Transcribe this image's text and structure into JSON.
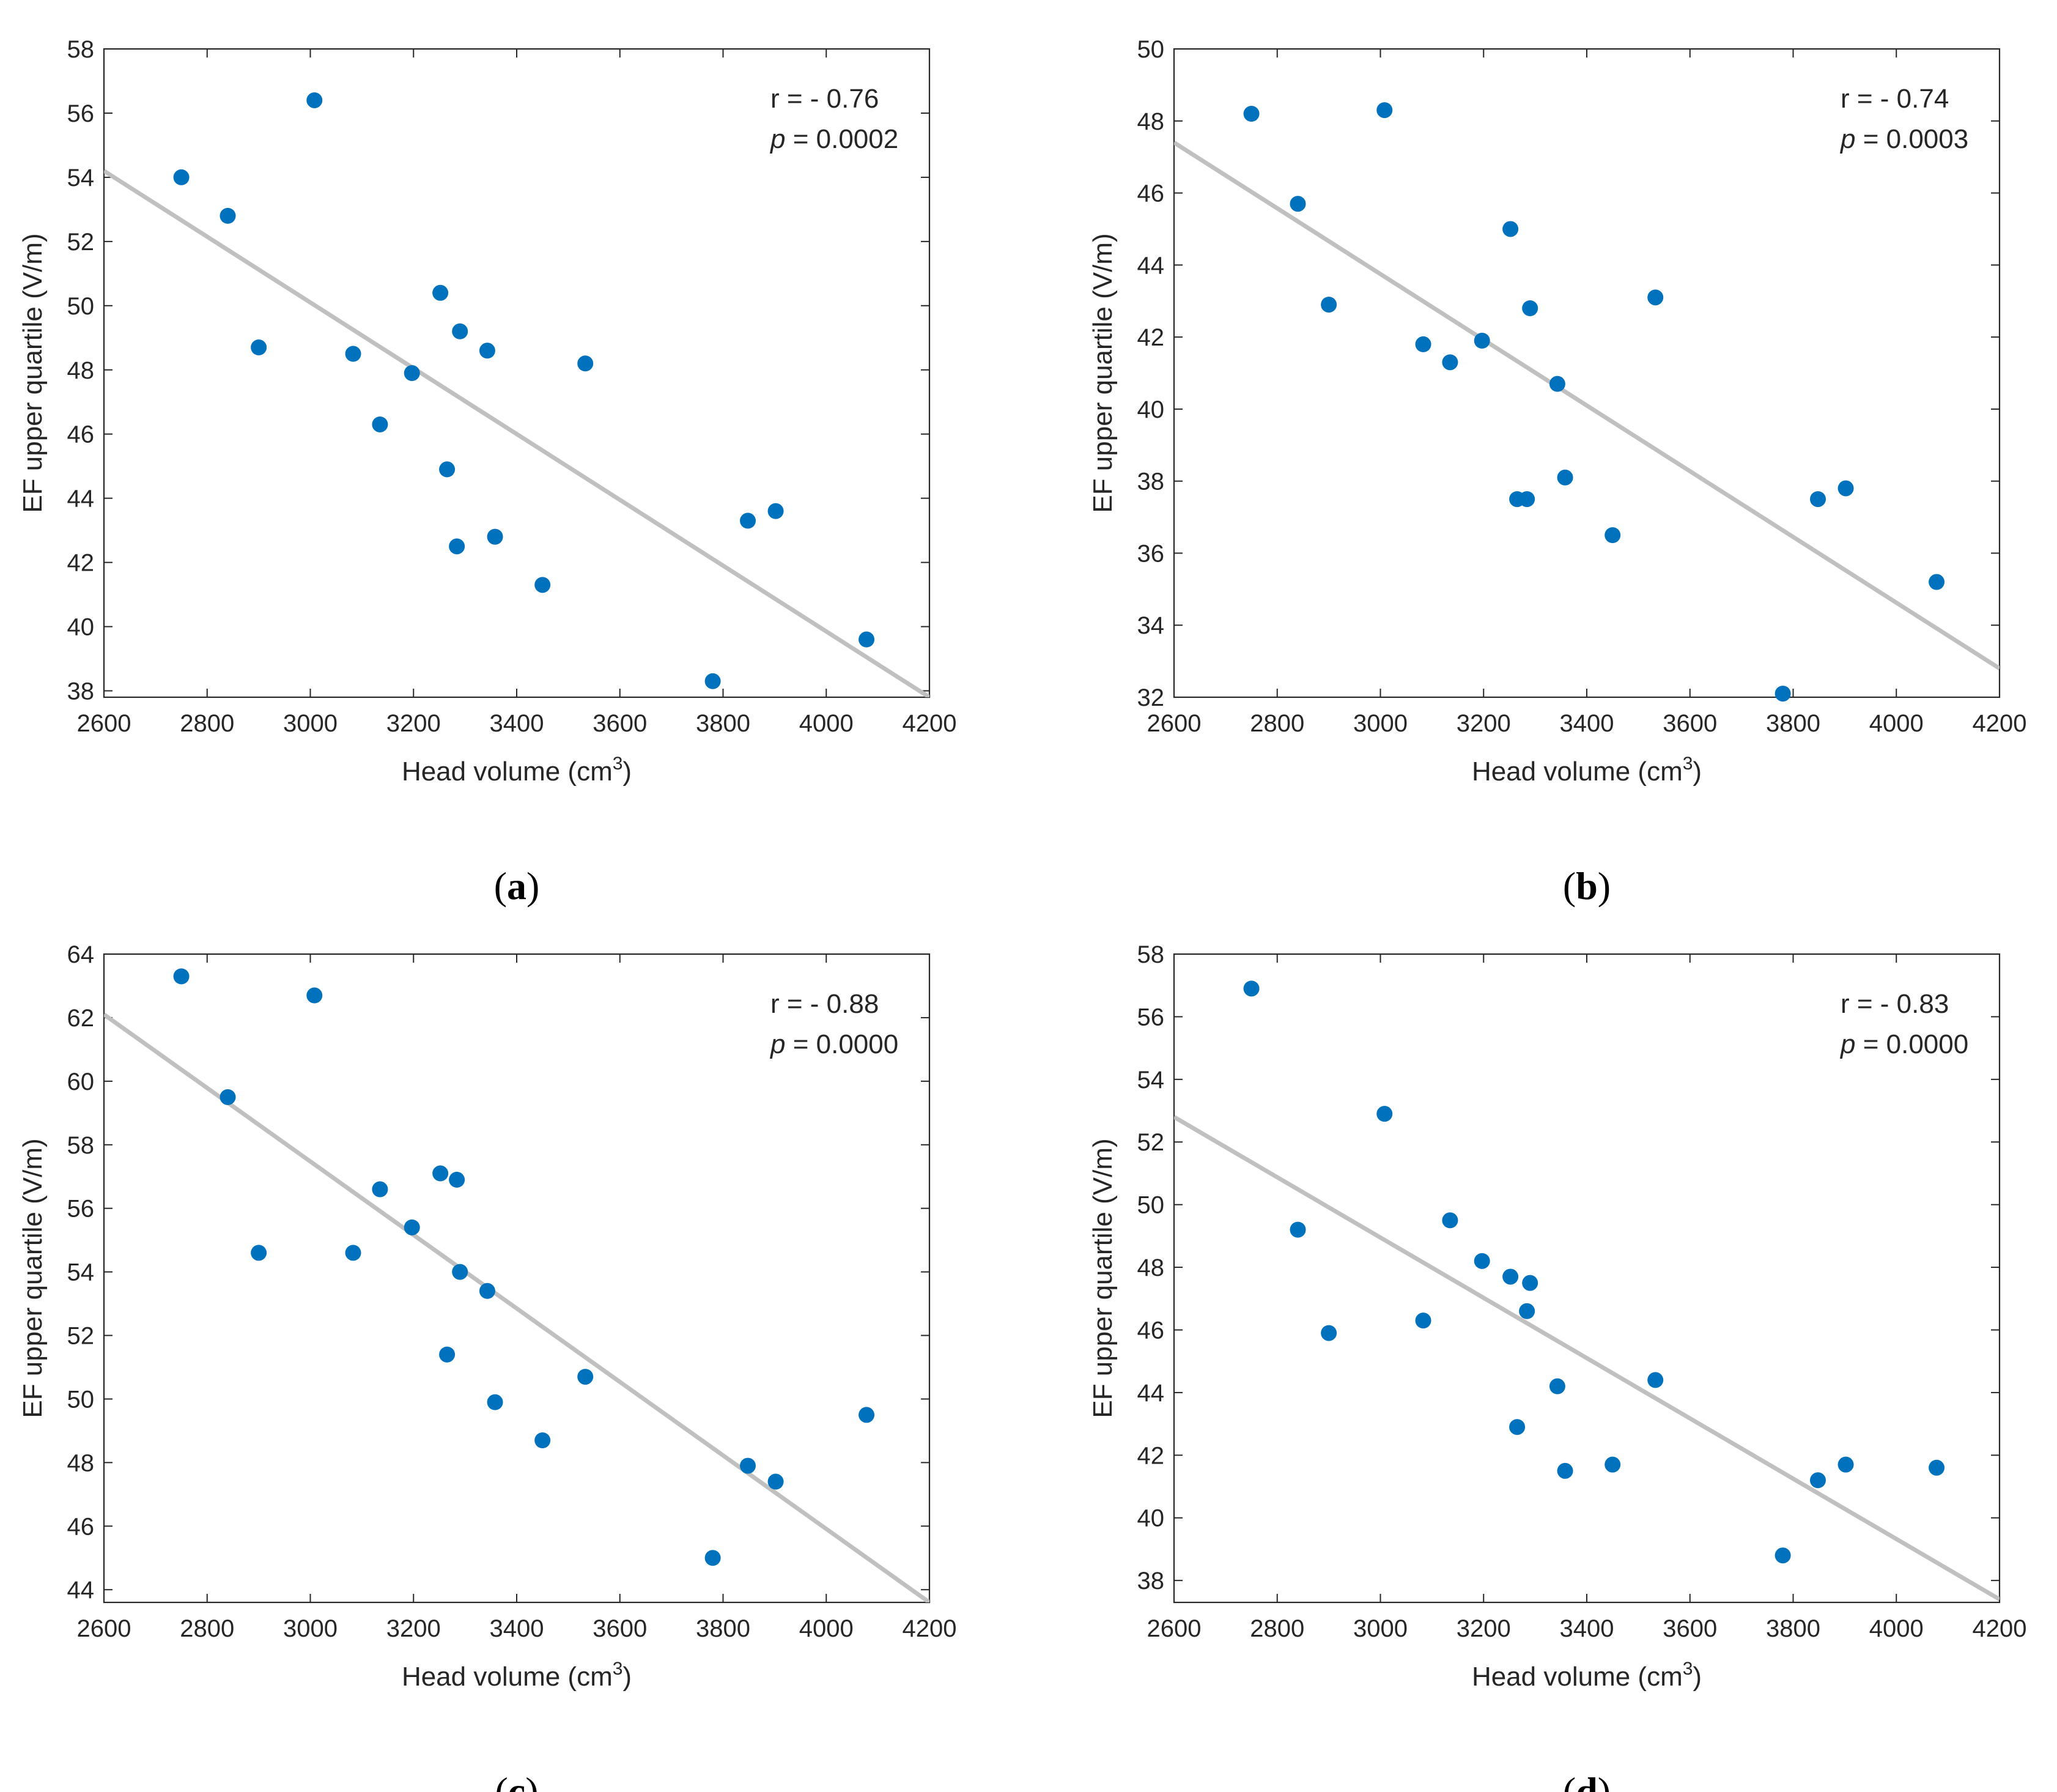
{
  "style": {
    "point_color": "#0072BD",
    "fit_line_color": "#C0C0C0",
    "axis_color": "#262626"
  },
  "chart_data": [
    {
      "type": "scatter",
      "caption": "a",
      "xlabel": "Head volume (cm",
      "xlabel_sup": "3",
      "xlabel_end": ")",
      "ylabel": "EF upper quartile (V/m)",
      "xlim": [
        2600,
        4200
      ],
      "ylim": [
        37.8,
        58
      ],
      "xticks": [
        2600,
        2800,
        3000,
        3200,
        3400,
        3600,
        3800,
        4000,
        4200
      ],
      "yticks": [
        38,
        40,
        42,
        44,
        46,
        48,
        50,
        52,
        54,
        56,
        58
      ],
      "annotation": {
        "r_text": "r = - 0.76",
        "p_label": "p",
        "p_rest": " = 0.0002"
      },
      "fit_line": {
        "x": [
          2600,
          4200
        ],
        "y": [
          54.2,
          37.8
        ]
      },
      "grid": false,
      "x": [
        2750,
        2840,
        2900,
        3008,
        3083,
        3135,
        3197,
        3252,
        3265,
        3284,
        3290,
        3343,
        3358,
        3450,
        3533,
        3780,
        3848,
        3902,
        4078
      ],
      "y": [
        54.0,
        52.8,
        48.7,
        56.4,
        48.5,
        46.3,
        47.9,
        50.4,
        44.9,
        42.5,
        49.2,
        48.6,
        42.8,
        41.3,
        48.2,
        38.3,
        43.3,
        43.6,
        39.6
      ]
    },
    {
      "type": "scatter",
      "caption": "b",
      "xlabel": "Head volume (cm",
      "xlabel_sup": "3",
      "xlabel_end": ")",
      "ylabel": "EF upper quartile (V/m)",
      "xlim": [
        2600,
        4200
      ],
      "ylim": [
        32,
        50
      ],
      "xticks": [
        2600,
        2800,
        3000,
        3200,
        3400,
        3600,
        3800,
        4000,
        4200
      ],
      "yticks": [
        32,
        34,
        36,
        38,
        40,
        42,
        44,
        46,
        48,
        50
      ],
      "annotation": {
        "r_text": "r = - 0.74",
        "p_label": "p",
        "p_rest": " = 0.0003"
      },
      "fit_line": {
        "x": [
          2600,
          4200
        ],
        "y": [
          47.4,
          32.8
        ]
      },
      "grid": false,
      "x": [
        2750,
        2840,
        2900,
        3008,
        3083,
        3135,
        3197,
        3252,
        3265,
        3284,
        3290,
        3343,
        3358,
        3450,
        3533,
        3780,
        3848,
        3902,
        4078
      ],
      "y": [
        48.2,
        45.7,
        42.9,
        48.3,
        41.8,
        41.3,
        41.9,
        45.0,
        37.5,
        37.5,
        42.8,
        40.7,
        38.1,
        36.5,
        43.1,
        32.1,
        37.5,
        37.8,
        35.2
      ]
    },
    {
      "type": "scatter",
      "caption": "c",
      "xlabel": "Head volume (cm",
      "xlabel_sup": "3",
      "xlabel_end": ")",
      "ylabel": "EF upper quartile (V/m)",
      "xlim": [
        2600,
        4200
      ],
      "ylim": [
        43.6,
        64
      ],
      "xticks": [
        2600,
        2800,
        3000,
        3200,
        3400,
        3600,
        3800,
        4000,
        4200
      ],
      "yticks": [
        44,
        46,
        48,
        50,
        52,
        54,
        56,
        58,
        60,
        62,
        64
      ],
      "annotation": {
        "r_text": "r = - 0.88",
        "p_label": "p",
        "p_rest": " = 0.0000"
      },
      "fit_line": {
        "x": [
          2600,
          4200
        ],
        "y": [
          62.1,
          43.6
        ]
      },
      "grid": false,
      "x": [
        2750,
        2840,
        2900,
        3008,
        3083,
        3135,
        3197,
        3252,
        3265,
        3284,
        3290,
        3343,
        3358,
        3450,
        3533,
        3780,
        3848,
        3902,
        4078
      ],
      "y": [
        63.3,
        59.5,
        54.6,
        62.7,
        54.6,
        56.6,
        55.4,
        57.1,
        51.4,
        56.9,
        54.0,
        53.4,
        49.9,
        48.7,
        50.7,
        45.0,
        47.9,
        47.4,
        49.5
      ]
    },
    {
      "type": "scatter",
      "caption": "d",
      "xlabel": "Head volume (cm",
      "xlabel_sup": "3",
      "xlabel_end": ")",
      "ylabel": "EF upper quartile (V/m)",
      "xlim": [
        2600,
        4200
      ],
      "ylim": [
        37.3,
        58
      ],
      "xticks": [
        2600,
        2800,
        3000,
        3200,
        3400,
        3600,
        3800,
        4000,
        4200
      ],
      "yticks": [
        38,
        40,
        42,
        44,
        46,
        48,
        50,
        52,
        54,
        56,
        58
      ],
      "annotation": {
        "r_text": "r = - 0.83",
        "p_label": "p",
        "p_rest": " = 0.0000"
      },
      "fit_line": {
        "x": [
          2600,
          4200
        ],
        "y": [
          52.8,
          37.4
        ]
      },
      "grid": false,
      "x": [
        2750,
        2840,
        2900,
        3008,
        3083,
        3135,
        3197,
        3252,
        3265,
        3284,
        3290,
        3343,
        3358,
        3450,
        3533,
        3780,
        3848,
        3902,
        4078
      ],
      "y": [
        56.9,
        49.2,
        45.9,
        52.9,
        46.3,
        49.5,
        48.2,
        47.7,
        42.9,
        46.6,
        47.5,
        44.2,
        41.5,
        41.7,
        44.4,
        38.8,
        41.2,
        41.7,
        41.6
      ]
    }
  ]
}
